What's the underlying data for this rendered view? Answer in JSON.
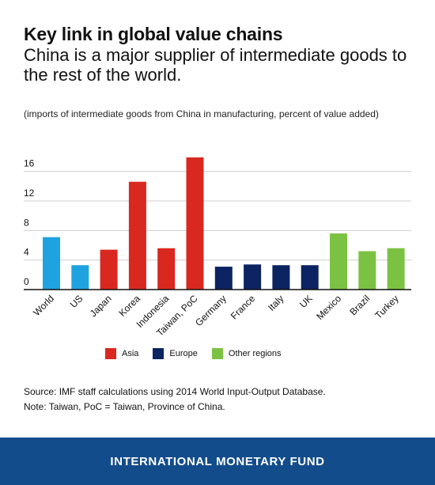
{
  "chart_data": {
    "type": "bar",
    "title": "Key link in global value chains",
    "subtitle": "China is a major supplier of intermediate goods to the rest of the world.",
    "units_note": "(imports of intermediate goods from China in manufacturing, percent of value added)",
    "categories": [
      "World",
      "US",
      "Japan",
      "Korea",
      "Indonesia",
      "Taiwan, PoC",
      "Germany",
      "France",
      "Italy",
      "UK",
      "Mexico",
      "Brazil",
      "Turkey"
    ],
    "values": [
      7.1,
      3.3,
      5.4,
      14.6,
      5.6,
      17.9,
      3.1,
      3.4,
      3.3,
      3.3,
      7.6,
      5.2,
      5.6
    ],
    "groups": [
      "world",
      "world",
      "asia",
      "asia",
      "asia",
      "asia",
      "europe",
      "europe",
      "europe",
      "europe",
      "other",
      "other",
      "other"
    ],
    "ylim": [
      0,
      18
    ],
    "yticks": [
      0,
      4,
      8,
      12,
      16
    ],
    "grid": true,
    "legend": [
      {
        "name": "Asia",
        "color": "#d9281f"
      },
      {
        "name": "Europe",
        "color": "#0c2461"
      },
      {
        "name": "Other regions",
        "color": "#7cc242"
      }
    ],
    "legend_position": "bottom",
    "colors": {
      "world": "#1ea3e0",
      "asia": "#d9281f",
      "europe": "#0c2461",
      "other": "#7cc242"
    }
  },
  "source_text": "Source: IMF staff calculations using 2014 World Input-Output Database.",
  "note_text": "Note: Taiwan, PoC = Taiwan, Province of China.",
  "footer_text": "INTERNATIONAL MONETARY FUND"
}
